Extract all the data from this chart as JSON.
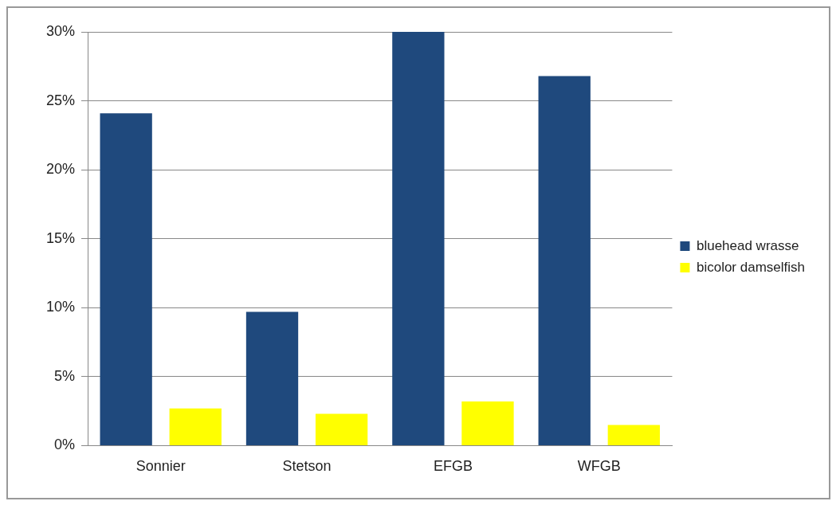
{
  "chart_data": {
    "type": "bar",
    "categories": [
      "Sonnier",
      "Stetson",
      "EFGB",
      "WFGB"
    ],
    "series": [
      {
        "name": "bluehead wrasse",
        "color": "#1f497d",
        "values": [
          24.1,
          9.7,
          30,
          26.8
        ]
      },
      {
        "name": "bicolor damselfish",
        "color": "#ffff00",
        "values": [
          2.7,
          2.3,
          3.2,
          1.5
        ]
      }
    ],
    "ylim": [
      0,
      30
    ],
    "yticks": [
      {
        "value": 0,
        "label": "0%"
      },
      {
        "value": 5,
        "label": "5%"
      },
      {
        "value": 10,
        "label": "10%"
      },
      {
        "value": 15,
        "label": "15%"
      },
      {
        "value": 20,
        "label": "20%"
      },
      {
        "value": 25,
        "label": "25%"
      },
      {
        "value": 30,
        "label": "30%"
      }
    ],
    "grid": "y",
    "legend": "right"
  }
}
